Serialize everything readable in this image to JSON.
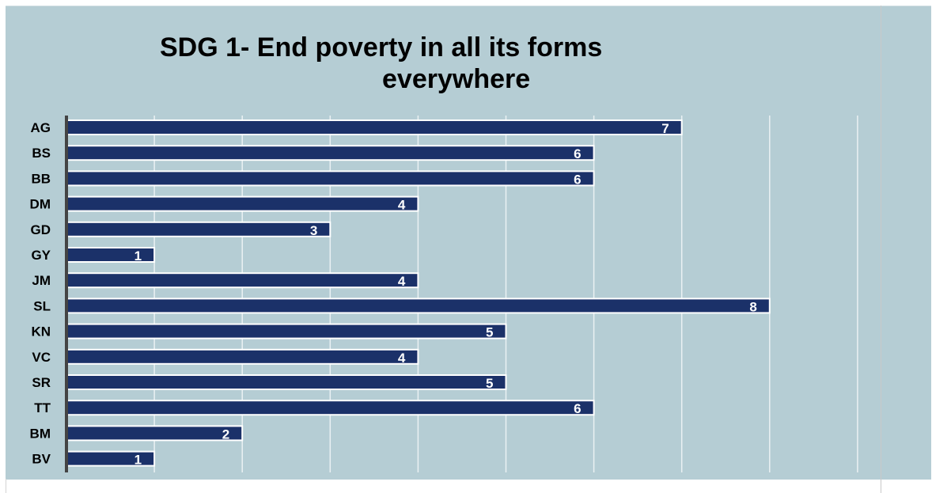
{
  "chart_data": {
    "type": "bar",
    "orientation": "horizontal",
    "title_lines": [
      "SDG 1- End poverty in all its forms",
      "everywhere"
    ],
    "categories": [
      "AG",
      "BS",
      "BB",
      "DM",
      "GD",
      "GY",
      "JM",
      "SL",
      "KN",
      "VC",
      "SR",
      "TT",
      "BM",
      "BV"
    ],
    "values": [
      7,
      6,
      6,
      4,
      3,
      1,
      4,
      8,
      5,
      4,
      5,
      6,
      2,
      1
    ],
    "xlim": [
      0,
      9
    ],
    "grid": true,
    "legend": "none",
    "colors": {
      "bar": "#1b3169",
      "bar_border": "#ffffff",
      "background": "#b5cdd4",
      "gridline": "#eaf1f3",
      "axis": "#444444"
    }
  }
}
